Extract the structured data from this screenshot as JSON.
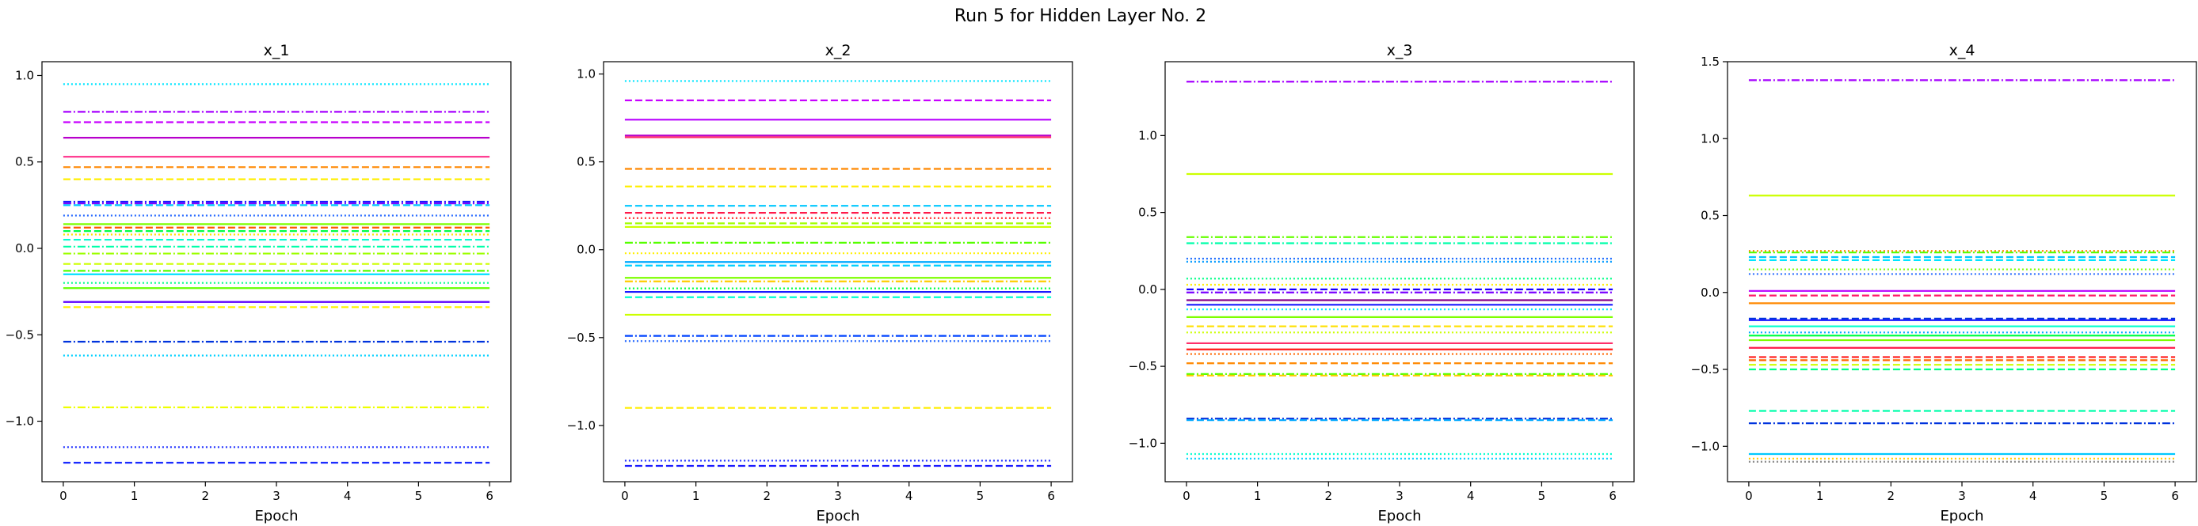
{
  "figure": {
    "title": "Run 5 for Hidden Layer No. 2"
  },
  "chart_data": [
    {
      "type": "line",
      "title": "x_1",
      "xlabel": "Epoch",
      "ylabel": "",
      "x": [
        0,
        1,
        2,
        3,
        4,
        5,
        6
      ],
      "xlim": [
        -0.3,
        6.3
      ],
      "ylim": [
        -1.35,
        1.08
      ],
      "yticks": [
        -1.0,
        -0.5,
        0.0,
        0.5,
        1.0
      ],
      "grid": false,
      "legend": "none",
      "lines": [
        {
          "value": 0.95,
          "color": "#00e5ff",
          "style": "dotted"
        },
        {
          "value": 0.79,
          "color": "#a600ff",
          "style": "dashdot"
        },
        {
          "value": 0.73,
          "color": "#c800ff",
          "style": "dashed"
        },
        {
          "value": 0.64,
          "color": "#b800cc",
          "style": "solid"
        },
        {
          "value": 0.53,
          "color": "#ff2f8a",
          "style": "solid"
        },
        {
          "value": 0.47,
          "color": "#ff8800",
          "style": "dashed"
        },
        {
          "value": 0.4,
          "color": "#ffee00",
          "style": "dashed"
        },
        {
          "value": 0.27,
          "color": "#1a1aff",
          "style": "dashdot"
        },
        {
          "value": 0.26,
          "color": "#7a00ff",
          "style": "dashdot"
        },
        {
          "value": 0.25,
          "color": "#00c8ff",
          "style": "dashed"
        },
        {
          "value": 0.19,
          "color": "#2a6bff",
          "style": "dotted"
        },
        {
          "value": 0.14,
          "color": "#7dff00",
          "style": "solid"
        },
        {
          "value": 0.12,
          "color": "#ff5a00",
          "style": "dashed"
        },
        {
          "value": 0.1,
          "color": "#00ff44",
          "style": "dashed"
        },
        {
          "value": 0.08,
          "color": "#ffe000",
          "style": "dotted"
        },
        {
          "value": 0.05,
          "color": "#00ffd0",
          "style": "dashed"
        },
        {
          "value": 0.01,
          "color": "#00ffaa",
          "style": "dashdot"
        },
        {
          "value": -0.03,
          "color": "#9cff00",
          "style": "dashdot"
        },
        {
          "value": -0.09,
          "color": "#ccff00",
          "style": "dashed"
        },
        {
          "value": -0.13,
          "color": "#55ff00",
          "style": "dashdot"
        },
        {
          "value": -0.15,
          "color": "#00e0ff",
          "style": "solid"
        },
        {
          "value": -0.2,
          "color": "#00ff88",
          "style": "dotted"
        },
        {
          "value": -0.23,
          "color": "#66ff00",
          "style": "solid"
        },
        {
          "value": -0.31,
          "color": "#5a00ff",
          "style": "solid"
        },
        {
          "value": -0.34,
          "color": "#fff200",
          "style": "dashed"
        },
        {
          "value": -0.54,
          "color": "#0033dd",
          "style": "dashdot"
        },
        {
          "value": -0.62,
          "color": "#00d0ff",
          "style": "dotted"
        },
        {
          "value": -0.92,
          "color": "#eeff00",
          "style": "dashdot"
        },
        {
          "value": -1.15,
          "color": "#2233ff",
          "style": "dotted"
        },
        {
          "value": -1.24,
          "color": "#1a2bff",
          "style": "dashed"
        }
      ]
    },
    {
      "type": "line",
      "title": "x_2",
      "xlabel": "Epoch",
      "ylabel": "",
      "x": [
        0,
        1,
        2,
        3,
        4,
        5,
        6
      ],
      "xlim": [
        -0.3,
        6.3
      ],
      "ylim": [
        -1.32,
        1.07
      ],
      "yticks": [
        -1.0,
        -0.5,
        0.0,
        0.5,
        1.0
      ],
      "grid": false,
      "legend": "none",
      "lines": [
        {
          "value": 0.96,
          "color": "#00e5ff",
          "style": "dotted"
        },
        {
          "value": 0.85,
          "color": "#c800ff",
          "style": "dashed"
        },
        {
          "value": 0.74,
          "color": "#b800ff",
          "style": "solid"
        },
        {
          "value": 0.65,
          "color": "#b800cc",
          "style": "solid"
        },
        {
          "value": 0.64,
          "color": "#ff2f6a",
          "style": "solid"
        },
        {
          "value": 0.46,
          "color": "#ff8800",
          "style": "dashed"
        },
        {
          "value": 0.36,
          "color": "#ffee00",
          "style": "dashed"
        },
        {
          "value": 0.25,
          "color": "#00c8ff",
          "style": "dashed"
        },
        {
          "value": 0.21,
          "color": "#ff1a4a",
          "style": "dashed"
        },
        {
          "value": 0.18,
          "color": "#ff3030",
          "style": "dotted"
        },
        {
          "value": 0.15,
          "color": "#a0ff00",
          "style": "dashed"
        },
        {
          "value": 0.13,
          "color": "#ccff00",
          "style": "solid"
        },
        {
          "value": 0.04,
          "color": "#55ff00",
          "style": "dashdot"
        },
        {
          "value": -0.02,
          "color": "#ffee00",
          "style": "dotted"
        },
        {
          "value": -0.07,
          "color": "#00a8ff",
          "style": "solid"
        },
        {
          "value": -0.09,
          "color": "#00d0ff",
          "style": "dashed"
        },
        {
          "value": -0.16,
          "color": "#7dff00",
          "style": "solid"
        },
        {
          "value": -0.18,
          "color": "#ffcc00",
          "style": "dashdot"
        },
        {
          "value": -0.22,
          "color": "#00ff44",
          "style": "dotted"
        },
        {
          "value": -0.24,
          "color": "#1a1aff",
          "style": "solid"
        },
        {
          "value": -0.27,
          "color": "#00ffd0",
          "style": "dashed"
        },
        {
          "value": -0.37,
          "color": "#ccff00",
          "style": "solid"
        },
        {
          "value": -0.49,
          "color": "#0044ff",
          "style": "dashdot"
        },
        {
          "value": -0.52,
          "color": "#2a6bff",
          "style": "dotted"
        },
        {
          "value": -0.9,
          "color": "#ffee00",
          "style": "dashed"
        },
        {
          "value": -1.2,
          "color": "#2233ff",
          "style": "dotted"
        },
        {
          "value": -1.23,
          "color": "#1a1aff",
          "style": "dashed"
        }
      ]
    },
    {
      "type": "line",
      "title": "x_3",
      "xlabel": "Epoch",
      "ylabel": "",
      "x": [
        0,
        1,
        2,
        3,
        4,
        5,
        6
      ],
      "xlim": [
        -0.3,
        6.3
      ],
      "ylim": [
        -1.25,
        1.48
      ],
      "yticks": [
        -1.0,
        -0.5,
        0.0,
        0.5,
        1.0
      ],
      "grid": false,
      "legend": "none",
      "lines": [
        {
          "value": 1.35,
          "color": "#a600ff",
          "style": "dashdot"
        },
        {
          "value": 0.75,
          "color": "#ccff00",
          "style": "solid"
        },
        {
          "value": 0.34,
          "color": "#66ff00",
          "style": "dashdot"
        },
        {
          "value": 0.3,
          "color": "#00ffaa",
          "style": "dashdot"
        },
        {
          "value": 0.2,
          "color": "#1a6bff",
          "style": "dotted"
        },
        {
          "value": 0.18,
          "color": "#0099ff",
          "style": "dotted"
        },
        {
          "value": 0.07,
          "color": "#00ff88",
          "style": "dotted"
        },
        {
          "value": 0.03,
          "color": "#ffee00",
          "style": "dotted"
        },
        {
          "value": 0.0,
          "color": "#1a00ff",
          "style": "dashed"
        },
        {
          "value": -0.02,
          "color": "#7a00ff",
          "style": "dashdot"
        },
        {
          "value": -0.07,
          "color": "#880088",
          "style": "solid"
        },
        {
          "value": -0.1,
          "color": "#1a1aff",
          "style": "solid"
        },
        {
          "value": -0.13,
          "color": "#00e5ff",
          "style": "dotted"
        },
        {
          "value": -0.18,
          "color": "#7dff00",
          "style": "solid"
        },
        {
          "value": -0.24,
          "color": "#ffe000",
          "style": "dashed"
        },
        {
          "value": -0.28,
          "color": "#ccff00",
          "style": "dotted"
        },
        {
          "value": -0.35,
          "color": "#ff2f6a",
          "style": "solid"
        },
        {
          "value": -0.39,
          "color": "#ff1a1a",
          "style": "solid"
        },
        {
          "value": -0.42,
          "color": "#ff6600",
          "style": "dotted"
        },
        {
          "value": -0.48,
          "color": "#ff8800",
          "style": "dashed"
        },
        {
          "value": -0.55,
          "color": "#55ff00",
          "style": "dashdot"
        },
        {
          "value": -0.56,
          "color": "#ffcc00",
          "style": "dashed"
        },
        {
          "value": -0.84,
          "color": "#0033dd",
          "style": "dashdot"
        },
        {
          "value": -0.85,
          "color": "#00a8ff",
          "style": "dashed"
        },
        {
          "value": -1.07,
          "color": "#00ffd0",
          "style": "dotted"
        },
        {
          "value": -1.1,
          "color": "#00d0ff",
          "style": "dotted"
        }
      ]
    },
    {
      "type": "line",
      "title": "x_4",
      "xlabel": "Epoch",
      "ylabel": "",
      "x": [
        0,
        1,
        2,
        3,
        4,
        5,
        6
      ],
      "xlim": [
        -0.3,
        6.3
      ],
      "ylim": [
        -1.23,
        1.5
      ],
      "yticks": [
        -1.0,
        -0.5,
        0.0,
        0.5,
        1.0,
        1.5
      ],
      "grid": false,
      "legend": "none",
      "lines": [
        {
          "value": 1.38,
          "color": "#a600ff",
          "style": "dashdot"
        },
        {
          "value": 0.63,
          "color": "#ccff00",
          "style": "solid"
        },
        {
          "value": 0.27,
          "color": "#ff8800",
          "style": "dotted"
        },
        {
          "value": 0.26,
          "color": "#55ff00",
          "style": "dashdot"
        },
        {
          "value": 0.23,
          "color": "#00c8ff",
          "style": "dashed"
        },
        {
          "value": 0.21,
          "color": "#00e5ff",
          "style": "dashed"
        },
        {
          "value": 0.15,
          "color": "#7dff00",
          "style": "dotted"
        },
        {
          "value": 0.12,
          "color": "#2a6bff",
          "style": "dotted"
        },
        {
          "value": 0.01,
          "color": "#b800ff",
          "style": "solid"
        },
        {
          "value": -0.02,
          "color": "#ff1a6a",
          "style": "dashed"
        },
        {
          "value": -0.07,
          "color": "#ff8800",
          "style": "solid"
        },
        {
          "value": -0.17,
          "color": "#0033dd",
          "style": "dashed"
        },
        {
          "value": -0.18,
          "color": "#1a1aff",
          "style": "solid"
        },
        {
          "value": -0.22,
          "color": "#00ffd0",
          "style": "solid"
        },
        {
          "value": -0.26,
          "color": "#00a8ff",
          "style": "dotted"
        },
        {
          "value": -0.28,
          "color": "#00ff44",
          "style": "solid"
        },
        {
          "value": -0.31,
          "color": "#7dff00",
          "style": "solid"
        },
        {
          "value": -0.36,
          "color": "#ff1a4a",
          "style": "solid"
        },
        {
          "value": -0.42,
          "color": "#ff1a1a",
          "style": "dashed"
        },
        {
          "value": -0.44,
          "color": "#ff6600",
          "style": "dashed"
        },
        {
          "value": -0.47,
          "color": "#ccff00",
          "style": "dashed"
        },
        {
          "value": -0.5,
          "color": "#00ff88",
          "style": "dashed"
        },
        {
          "value": -0.77,
          "color": "#00ffaa",
          "style": "dashed"
        },
        {
          "value": -0.85,
          "color": "#0033dd",
          "style": "dashdot"
        },
        {
          "value": -1.05,
          "color": "#00c8ff",
          "style": "solid"
        },
        {
          "value": -1.08,
          "color": "#ffcc00",
          "style": "dotted"
        },
        {
          "value": -1.1,
          "color": "#888888",
          "style": "dotted"
        }
      ]
    }
  ]
}
